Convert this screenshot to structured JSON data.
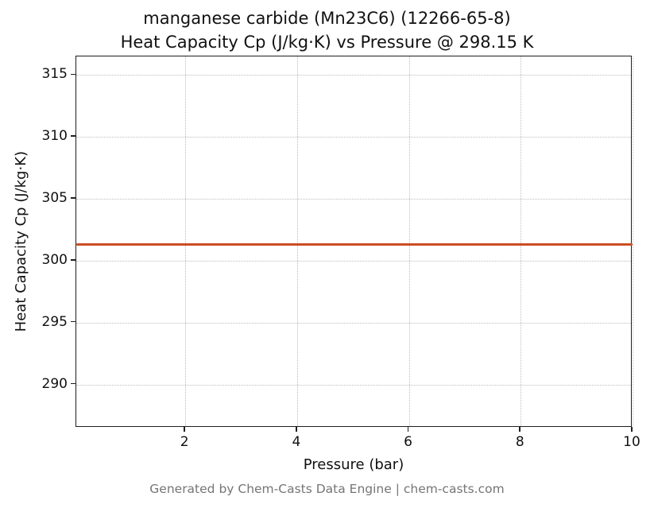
{
  "title_line1": "manganese carbide (Mn23C6) (12266-65-8)",
  "title_line2": "Heat Capacity Cp (J/kg·K) vs Pressure @ 298.15 K",
  "footer": "Generated by Chem-Casts Data Engine | chem-casts.com",
  "chart_data": {
    "type": "line",
    "title": "manganese carbide (Mn23C6) (12266-65-8) — Heat Capacity Cp (J/kg·K) vs Pressure @ 298.15 K",
    "xlabel": "Pressure (bar)",
    "ylabel": "Heat Capacity Cp (J/kg·K)",
    "xlim": [
      0.05,
      10
    ],
    "ylim": [
      286.5,
      316.5
    ],
    "x_ticks": [
      2,
      4,
      6,
      8,
      10
    ],
    "y_ticks": [
      290,
      295,
      300,
      305,
      310,
      315
    ],
    "grid": true,
    "legend": "none",
    "series": [
      {
        "name": "Heat Capacity Cp",
        "color": "#cc4e22",
        "x": [
          0.05,
          10
        ],
        "y": [
          301.3,
          301.3
        ]
      }
    ]
  }
}
